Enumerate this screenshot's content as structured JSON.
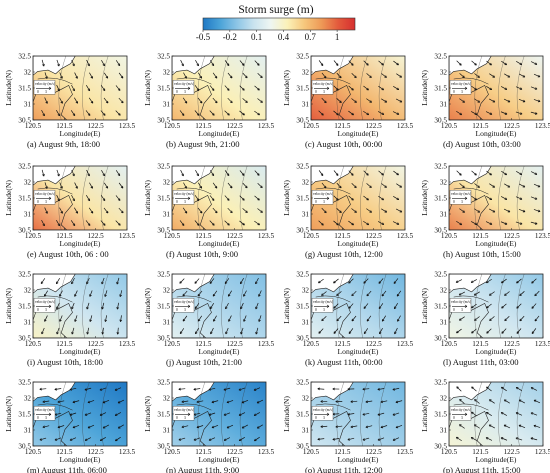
{
  "colorbar": {
    "title": "Storm surge (m)",
    "tick_labels": [
      "-0.5",
      "-0.2",
      "0.1",
      "0.4",
      "0.7",
      "1"
    ],
    "range": [
      -0.5,
      1.2
    ],
    "colors": [
      "#1f78c4",
      "#4aa3d8",
      "#8cc5e6",
      "#c9e3ef",
      "#eef6f2",
      "#fbf1b8",
      "#f6c77c",
      "#ee9a57",
      "#e35a3c",
      "#d62f2f"
    ]
  },
  "axes": {
    "ylabel": "Latitude(N)",
    "xlabel": "Longitude(E)",
    "y_ticks": [
      "32.5",
      "32",
      "31.5",
      "31",
      "30.5"
    ],
    "x_ticks": [
      "120.5",
      "121.5",
      "122.5",
      "123.5"
    ]
  },
  "legend": {
    "label": "velocity (m/s)",
    "ticks": [
      "0",
      "3"
    ]
  },
  "panels": [
    {
      "caption": "(a) August 9th, 18:00",
      "surge": [
        0.3,
        0.5,
        0.8
      ],
      "wind_dir": 300
    },
    {
      "caption": "(b) August 9th, 21:00",
      "surge": [
        0.2,
        0.45,
        0.7
      ],
      "wind_dir": 310
    },
    {
      "caption": "(c) August 10th, 00:00",
      "surge": [
        0.35,
        0.7,
        1.0
      ],
      "wind_dir": 320
    },
    {
      "caption": "(d) August 10th, 03:00",
      "surge": [
        0.25,
        0.6,
        0.9
      ],
      "wind_dir": 330
    },
    {
      "caption": "(e) August 10th, 06 : 00",
      "surge": [
        0.2,
        0.5,
        0.95
      ],
      "wind_dir": 300
    },
    {
      "caption": "(f) August 10th, 9:00",
      "surge": [
        0.15,
        0.45,
        0.75
      ],
      "wind_dir": 310
    },
    {
      "caption": "(g) August 10th, 12:00",
      "surge": [
        0.3,
        0.6,
        0.8
      ],
      "wind_dir": 320
    },
    {
      "caption": "(h) August 10th, 15:00",
      "surge": [
        0.2,
        0.5,
        0.9
      ],
      "wind_dir": 330
    },
    {
      "caption": "(i) August 10th, 18:00",
      "surge": [
        -0.1,
        0.1,
        0.4
      ],
      "wind_dir": 250
    },
    {
      "caption": "(j) August 10th, 21:00",
      "surge": [
        -0.15,
        0.0,
        0.2
      ],
      "wind_dir": 240
    },
    {
      "caption": "(k) August 11th, 00:00",
      "surge": [
        -0.2,
        0.0,
        0.2
      ],
      "wind_dir": 230
    },
    {
      "caption": "(l) August 11th, 03:00",
      "surge": [
        -0.1,
        0.1,
        0.3
      ],
      "wind_dir": 220
    },
    {
      "caption": "(m) August 11th, 06:00",
      "surge": [
        -0.5,
        -0.3,
        -0.1
      ],
      "wind_dir": 200
    },
    {
      "caption": "(n) August 11th, 9:00",
      "surge": [
        -0.45,
        -0.25,
        -0.05
      ],
      "wind_dir": 200
    },
    {
      "caption": "(o) August 11th, 12:00",
      "surge": [
        -0.2,
        -0.05,
        0.1
      ],
      "wind_dir": 190
    },
    {
      "caption": "(p) August 11th, 15:00",
      "surge": [
        -0.05,
        0.15,
        0.35
      ],
      "wind_dir": 150
    }
  ]
}
